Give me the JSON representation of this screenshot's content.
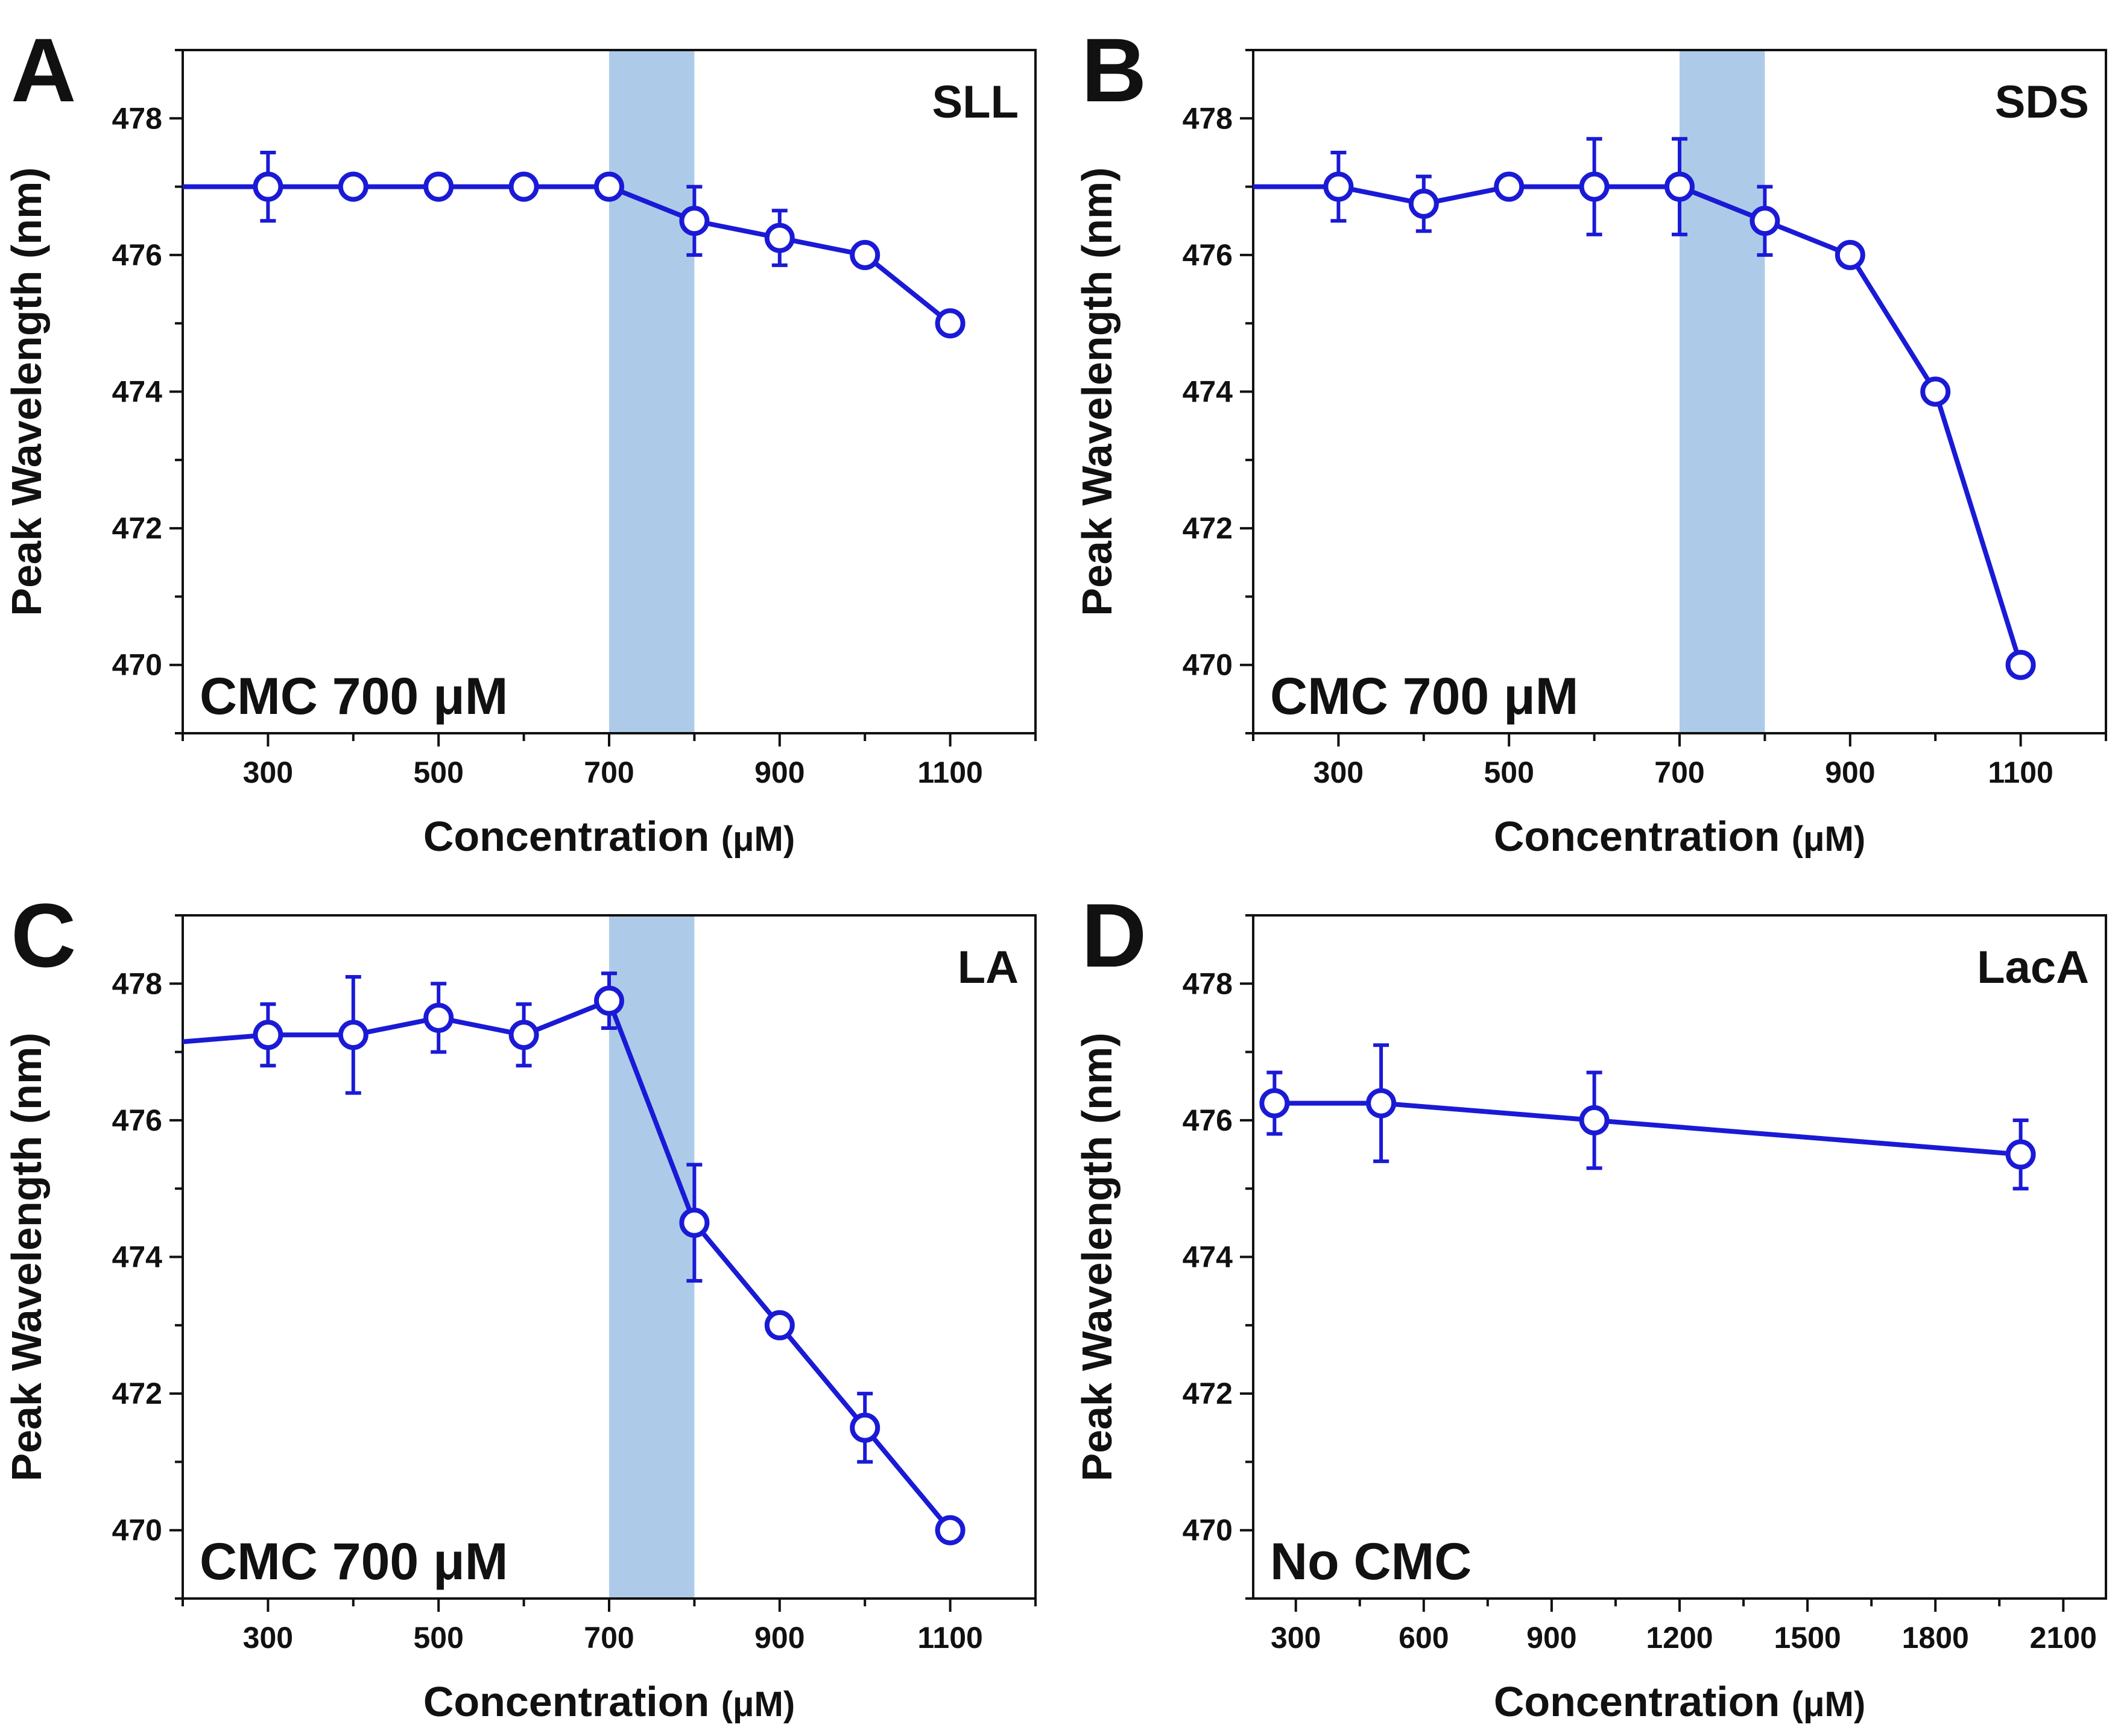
{
  "chart_data": [
    {
      "type": "line",
      "panel": "A",
      "label": "SLL",
      "annotation": "CMC 700 μM",
      "xlabel": "Concentration",
      "xunit": "(μM)",
      "ylabel": "Peak Wavelength (nm)",
      "xlim": [
        200,
        1200
      ],
      "ylim": [
        469,
        479
      ],
      "xticks": [
        300,
        500,
        700,
        900,
        1100
      ],
      "yticks": [
        470,
        472,
        474,
        476,
        478
      ],
      "shaded_region": [
        700,
        800
      ],
      "line_start": [
        200,
        477
      ],
      "series": [
        {
          "name": "SLL",
          "color": "#1a1ad6",
          "x": [
            300,
            400,
            500,
            600,
            700,
            800,
            900,
            1000,
            1100
          ],
          "y": [
            477,
            477,
            477,
            477,
            477,
            476.5,
            476.25,
            476,
            475
          ],
          "err": [
            0.5,
            0,
            0,
            0,
            0,
            0.5,
            0.4,
            0,
            0
          ]
        }
      ]
    },
    {
      "type": "line",
      "panel": "B",
      "label": "SDS",
      "annotation": "CMC 700 μM",
      "xlabel": "Concentration",
      "xunit": "(μM)",
      "ylabel": "Peak Wavelength (nm)",
      "xlim": [
        200,
        1200
      ],
      "ylim": [
        469,
        479
      ],
      "xticks": [
        300,
        500,
        700,
        900,
        1100
      ],
      "yticks": [
        470,
        472,
        474,
        476,
        478
      ],
      "shaded_region": [
        700,
        800
      ],
      "line_start": [
        200,
        477
      ],
      "series": [
        {
          "name": "SDS",
          "color": "#1a1ad6",
          "x": [
            300,
            400,
            500,
            600,
            700,
            800,
            900,
            1000,
            1100
          ],
          "y": [
            477,
            476.75,
            477,
            477,
            477,
            476.5,
            476,
            474,
            470
          ],
          "err": [
            0.5,
            0.4,
            0,
            0.7,
            0.7,
            0.5,
            0,
            0,
            0
          ]
        }
      ]
    },
    {
      "type": "line",
      "panel": "C",
      "label": "LA",
      "annotation": "CMC 700 μM",
      "xlabel": "Concentration",
      "xunit": "(μM)",
      "ylabel": "Peak Wavelength (nm)",
      "xlim": [
        200,
        1200
      ],
      "ylim": [
        469,
        479
      ],
      "xticks": [
        300,
        500,
        700,
        900,
        1100
      ],
      "yticks": [
        470,
        472,
        474,
        476,
        478
      ],
      "shaded_region": [
        700,
        800
      ],
      "line_start": [
        200,
        477.15
      ],
      "series": [
        {
          "name": "LA",
          "color": "#1a1ad6",
          "x": [
            300,
            400,
            500,
            600,
            700,
            800,
            900,
            1000,
            1100
          ],
          "y": [
            477.25,
            477.25,
            477.5,
            477.25,
            477.75,
            474.5,
            473,
            471.5,
            470
          ],
          "err": [
            0.45,
            0.85,
            0.5,
            0.45,
            0.4,
            0.85,
            0,
            0.5,
            0
          ]
        }
      ]
    },
    {
      "type": "line",
      "panel": "D",
      "label": "LacA",
      "annotation": "No CMC",
      "xlabel": "Concentration",
      "xunit": "(μM)",
      "ylabel": "Peak Wavelength (nm)",
      "xlim": [
        200,
        2200
      ],
      "ylim": [
        469,
        479
      ],
      "xticks": [
        300,
        600,
        900,
        1200,
        1500,
        1800,
        2100
      ],
      "yticks": [
        470,
        472,
        474,
        476,
        478
      ],
      "shaded_region": null,
      "line_start": null,
      "series": [
        {
          "name": "LacA",
          "color": "#1a1ad6",
          "x": [
            250,
            500,
            1000,
            2000
          ],
          "y": [
            476.25,
            476.25,
            476,
            475.5
          ],
          "err": [
            0.45,
            0.85,
            0.7,
            0.5
          ]
        }
      ]
    }
  ],
  "colors": {
    "line": "#1a1ad6",
    "shade": "#adcbe9",
    "axis": "#111111"
  }
}
